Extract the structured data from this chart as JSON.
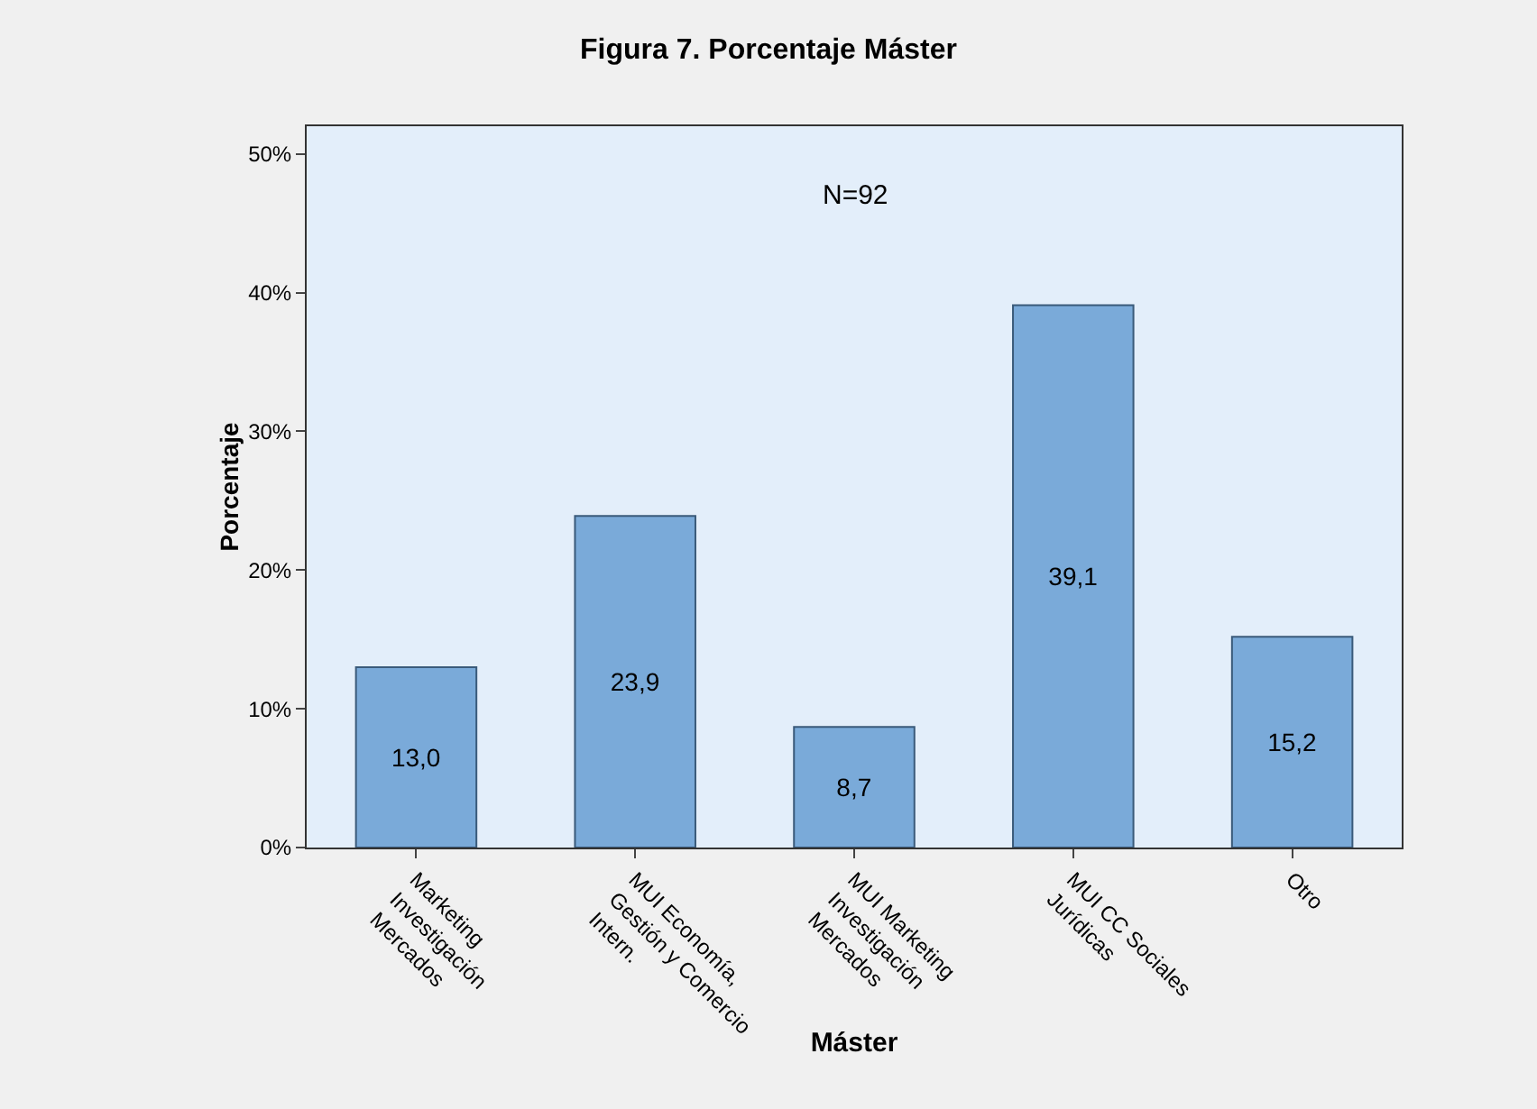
{
  "chart_data": {
    "type": "bar",
    "title": "Figura 7. Porcentaje Máster",
    "xlabel": "Máster",
    "ylabel": "Porcentaje",
    "categories": [
      "Marketing Investigación Mercados",
      "MUI Economía, Gestión y Comercio Intern.",
      "MUI Marketing Investigación Mercados",
      "MUI CC Sociales Jurídicas",
      "Otro"
    ],
    "values": [
      13.0,
      23.9,
      8.7,
      39.1,
      15.2
    ],
    "value_labels": [
      "13,0",
      "23,9",
      "8,7",
      "39,1",
      "15,2"
    ],
    "color": "#7aaad9",
    "ylim": [
      0,
      52
    ],
    "yticks": [
      {
        "value": 0,
        "label": "0%"
      },
      {
        "value": 10,
        "label": "10%"
      },
      {
        "value": 20,
        "label": "20%"
      },
      {
        "value": 30,
        "label": "30%"
      },
      {
        "value": 40,
        "label": "40%"
      },
      {
        "value": 50,
        "label": "50%"
      }
    ],
    "annotations": [
      "N=92"
    ],
    "grid": false,
    "legend": false
  }
}
